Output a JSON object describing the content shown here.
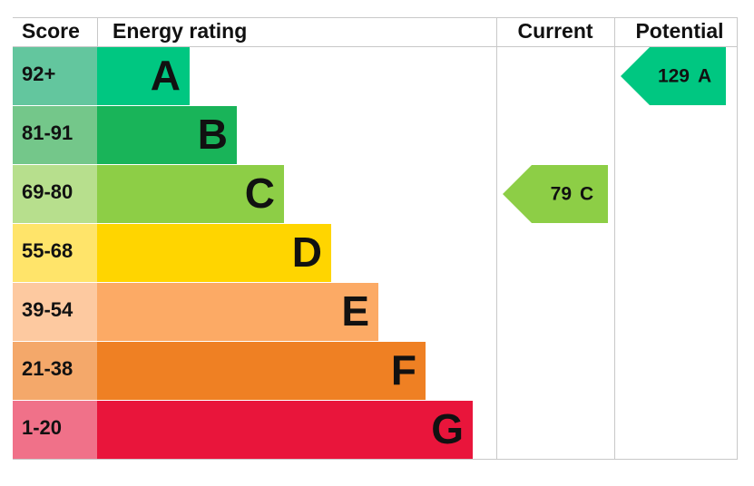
{
  "headers": {
    "score": "Score",
    "rating": "Energy rating",
    "current": "Current",
    "potential": "Potential"
  },
  "bands": [
    {
      "score": "92+",
      "letter": "A",
      "color": "#00c781",
      "score_color": "#63c69e"
    },
    {
      "score": "81-91",
      "letter": "B",
      "color": "#19b459",
      "score_color": "#74c78a"
    },
    {
      "score": "69-80",
      "letter": "C",
      "color": "#8dce46",
      "score_color": "#b7df8d"
    },
    {
      "score": "55-68",
      "letter": "D",
      "color": "#ffd500",
      "score_color": "#ffe46a"
    },
    {
      "score": "39-54",
      "letter": "E",
      "color": "#fcaa65",
      "score_color": "#fdc9a0"
    },
    {
      "score": "21-38",
      "letter": "F",
      "color": "#ef8023",
      "score_color": "#f4a86a"
    },
    {
      "score": "1-20",
      "letter": "G",
      "color": "#e9153b",
      "score_color": "#f07189"
    }
  ],
  "current": {
    "value": 79,
    "letter": "C"
  },
  "potential": {
    "value": 129,
    "letter": "A"
  }
}
